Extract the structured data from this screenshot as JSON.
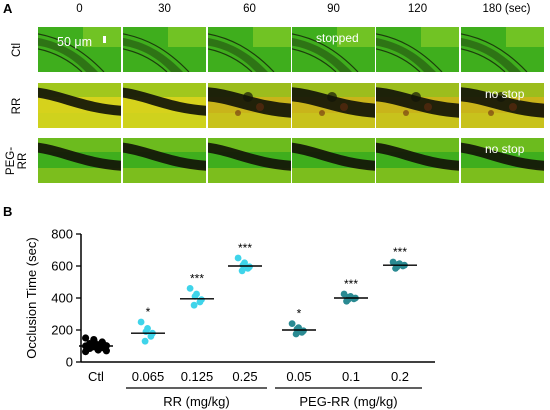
{
  "panel_a": {
    "letter": "A",
    "time_points": [
      "0",
      "30",
      "60",
      "90",
      "120",
      "180 (sec)"
    ],
    "rows": [
      {
        "label": "Ctl",
        "note": "stopped",
        "note_col": 3
      },
      {
        "label": "RR",
        "note": "no stop",
        "note_col": 5
      },
      {
        "label_line1": "PEG-",
        "label_line2": "RR",
        "note": "no stop",
        "note_col": 5
      }
    ],
    "scale_bar": "50 μm",
    "colors": {
      "green": "#3fae1d",
      "yellow": "#d6d21c",
      "dark": "#121508"
    }
  },
  "panel_b": {
    "letter": "B"
  },
  "chart_data": {
    "type": "scatter",
    "ylabel": "Occlusion Time (sec)",
    "ylim": [
      0,
      800
    ],
    "yticks": [
      0,
      200,
      400,
      600,
      800
    ],
    "categories": [
      "Ctl",
      "0.065",
      "0.125",
      "0.25",
      "0.05",
      "0.1",
      "0.2"
    ],
    "groups": [
      {
        "label": "RR (mg/kg)",
        "categories": [
          "0.065",
          "0.125",
          "0.25"
        ]
      },
      {
        "label": "PEG-RR (mg/kg)",
        "categories": [
          "0.05",
          "0.1",
          "0.2"
        ]
      }
    ],
    "series": [
      {
        "category": "Ctl",
        "color": "#000000",
        "mean": 100,
        "points": [
          150,
          140,
          130,
          125,
          120,
          115,
          110,
          108,
          105,
          102,
          100,
          98,
          95,
          92,
          90,
          88,
          85,
          80,
          75,
          70,
          65
        ],
        "significance": ""
      },
      {
        "category": "0.065",
        "color": "#3fd4ea",
        "mean": 180,
        "points": [
          250,
          210,
          190,
          180,
          160,
          130
        ],
        "significance": "*"
      },
      {
        "category": "0.125",
        "color": "#3fd4ea",
        "mean": 395,
        "points": [
          460,
          425,
          410,
          390,
          375,
          355
        ],
        "significance": "***"
      },
      {
        "category": "0.25",
        "color": "#3fd4ea",
        "mean": 600,
        "points": [
          650,
          620,
          605,
          595,
          585,
          570
        ],
        "significance": "***"
      },
      {
        "category": "0.05",
        "color": "#2a8a92",
        "mean": 200,
        "points": [
          240,
          215,
          205,
          195,
          185,
          175
        ],
        "significance": "*"
      },
      {
        "category": "0.1",
        "color": "#2a8a92",
        "mean": 400,
        "points": [
          425,
          410,
          405,
          400,
          395,
          390,
          380
        ],
        "significance": "***"
      },
      {
        "category": "0.2",
        "color": "#2a8a92",
        "mean": 605,
        "points": [
          625,
          615,
          610,
          605,
          600,
          595,
          585
        ],
        "significance": "***"
      }
    ],
    "grid": false
  }
}
